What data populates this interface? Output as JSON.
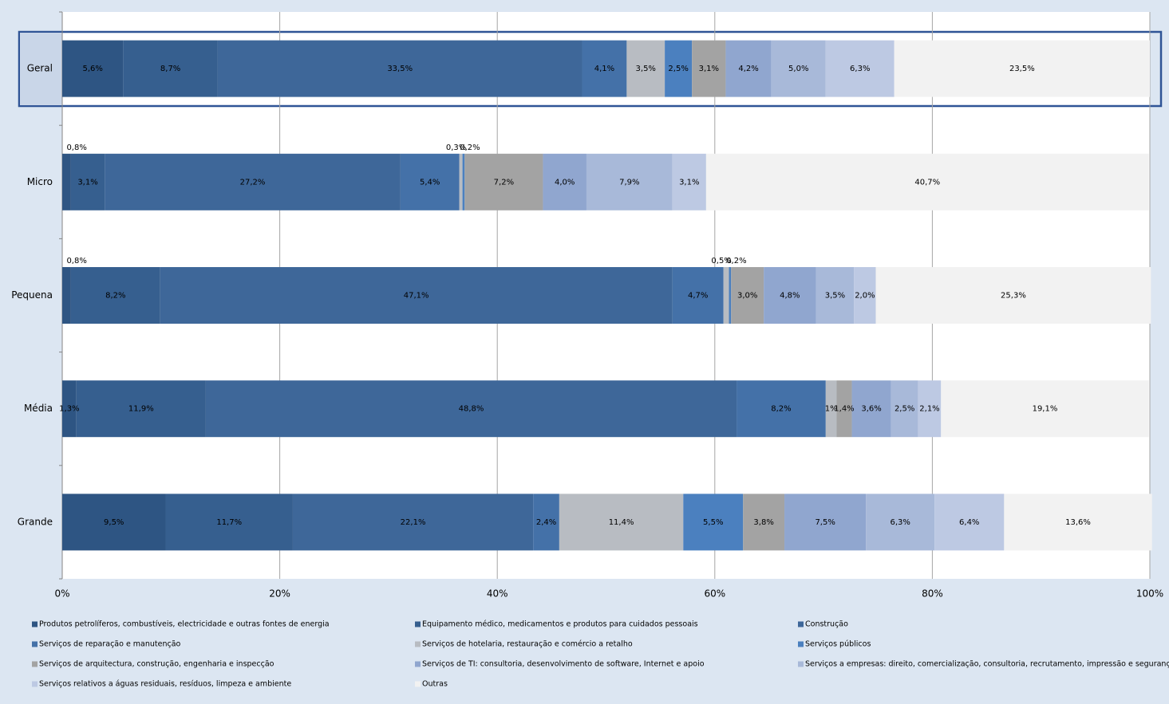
{
  "chart_data": {
    "type": "stacked-bar-horizontal",
    "categories": [
      "Geral",
      "Micro",
      "Pequena",
      "Média",
      "Grande"
    ],
    "xlim": [
      0,
      100
    ],
    "xticks": [
      {
        "value": 0,
        "label": "0%"
      },
      {
        "value": 20,
        "label": "20%"
      },
      {
        "value": 40,
        "label": "40%"
      },
      {
        "value": 60,
        "label": "60%"
      },
      {
        "value": 80,
        "label": "80%"
      },
      {
        "value": 100,
        "label": "100%"
      }
    ],
    "grid": true,
    "series": [
      {
        "name": "Produtos petrolíferos, combustíveis, electricidade e outras fontes de energia",
        "color": "#2e5583",
        "values": [
          5.6,
          0.8,
          0.8,
          1.3,
          9.5
        ],
        "value_labels": [
          "5,6%",
          "0,8%",
          "0,8%",
          "1,3%",
          "9,5%"
        ]
      },
      {
        "name": "Equipamento médico, medicamentos e produtos para cuidados pessoais",
        "color": "#365f8f",
        "values": [
          8.7,
          3.1,
          8.2,
          11.9,
          11.7
        ],
        "value_labels": [
          "8,7%",
          "3,1%",
          "8,2%",
          "11,9%",
          "11,7%"
        ]
      },
      {
        "name": "Construção",
        "color": "#3e6799",
        "values": [
          33.5,
          27.2,
          47.1,
          48.8,
          22.1
        ],
        "value_labels": [
          "33,5%",
          "27,2%",
          "47,1%",
          "48,8%",
          "22,1%"
        ]
      },
      {
        "name": "Serviços de reparação e manutenção",
        "color": "#4471a8",
        "values": [
          4.1,
          5.4,
          4.7,
          8.2,
          2.4
        ],
        "value_labels": [
          "4,1%",
          "5,4%",
          "4,7%",
          "8,2%",
          "2,4%"
        ]
      },
      {
        "name": "Serviços de hotelaria, restauração e comércio a retalho",
        "color": "#b8bcc2",
        "values": [
          3.5,
          0.3,
          0.5,
          1,
          11.4
        ],
        "value_labels": [
          "3,5%",
          "0,3%",
          "0,5%",
          "1%",
          "11,4%"
        ]
      },
      {
        "name": "Serviços públicos",
        "color": "#4b80bf",
        "values": [
          2.5,
          0.2,
          0.2,
          null,
          5.5
        ],
        "value_labels": [
          "2,5%",
          "0,2%",
          "0,2%",
          null,
          "5,5%"
        ]
      },
      {
        "name": "Serviços de arquitectura, construção, engenharia e inspecção",
        "color": "#a3a3a3",
        "values": [
          3.1,
          7.2,
          3.0,
          1.4,
          3.8
        ],
        "value_labels": [
          "3,1%",
          "7,2%",
          "3,0%",
          "1,4%",
          "3,8%"
        ]
      },
      {
        "name": "Serviços de TI: consultoria, desenvolvimento de software, Internet e apoio",
        "color": "#90a6cf",
        "values": [
          4.2,
          4.0,
          4.8,
          3.6,
          7.5
        ],
        "value_labels": [
          "4,2%",
          "4,0%",
          "4,8%",
          "3,6%",
          "7,5%"
        ]
      },
      {
        "name": "Serviços a empresas: direito, comercialização, consultoria, recrutamento, impressão e segurança",
        "color": "#a8b9d9",
        "values": [
          5.0,
          7.9,
          3.5,
          2.5,
          6.3
        ],
        "value_labels": [
          "5,0%",
          "7,9%",
          "3,5%",
          "2,5%",
          "6,3%"
        ]
      },
      {
        "name": "Serviços relativos a águas residuais, resíduos, limpeza e ambiente",
        "color": "#bdc9e3",
        "values": [
          6.3,
          3.1,
          2.0,
          2.1,
          6.4
        ],
        "value_labels": [
          "6,3%",
          "3,1%",
          "2,0%",
          "2,1%",
          "6,4%"
        ]
      },
      {
        "name": "Outras",
        "color": "#f2f2f2",
        "values": [
          23.5,
          40.7,
          25.3,
          19.1,
          13.6
        ],
        "value_labels": [
          "23,5%",
          "40,7%",
          "25,3%",
          "19,1%",
          "13,6%"
        ]
      }
    ]
  }
}
